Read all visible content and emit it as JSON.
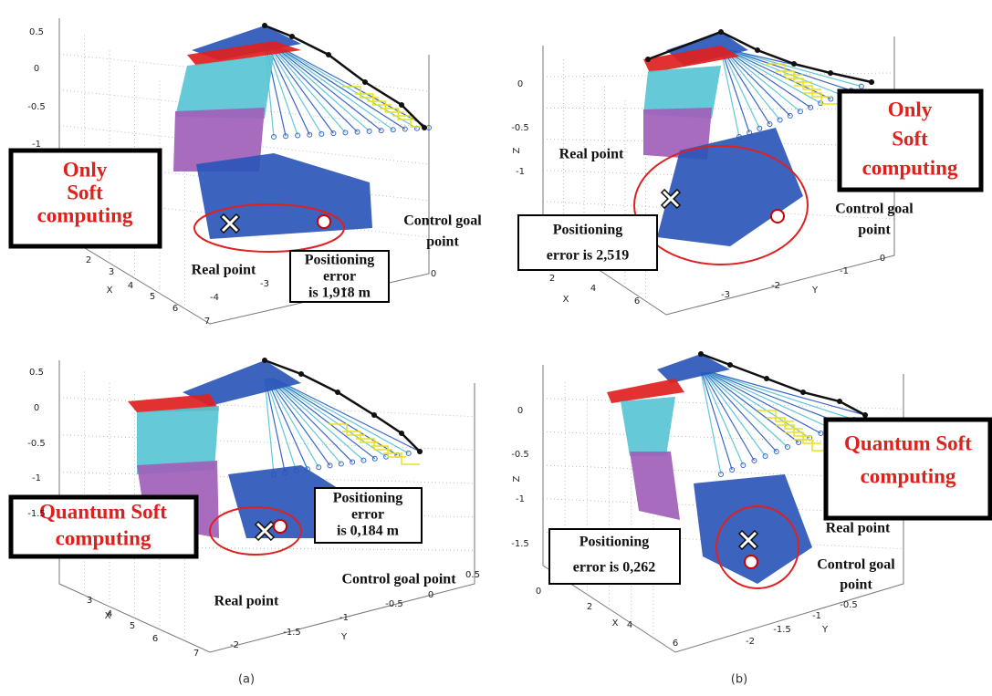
{
  "panels": [
    {
      "method_label": [
        "Only",
        "Soft",
        "computing"
      ],
      "error_label": [
        "Positioning",
        "error",
        "is 1,918 m"
      ],
      "real_point": "Real point",
      "goal_point": [
        "Control goal",
        "point"
      ],
      "z_ticks": [
        "0.5",
        "0",
        "-0.5",
        "-1"
      ],
      "x_ticks": [
        "2",
        "3",
        "4",
        "5",
        "6",
        "7"
      ],
      "x_label": "X",
      "y_ticks": [
        "-4",
        "-3",
        "0"
      ],
      "y_label": "Y"
    },
    {
      "method_label": [
        "Quantum Soft",
        "computing"
      ],
      "error_label": [
        "Positioning",
        "error",
        "is 0,184 m"
      ],
      "real_point": "Real point",
      "goal_point": [
        "Control goal point"
      ],
      "z_ticks": [
        "0.5",
        "0",
        "-0.5",
        "-1",
        "-1.5"
      ],
      "x_ticks": [
        "3",
        "4",
        "5",
        "6",
        "7"
      ],
      "x_label": "X",
      "y_ticks": [
        "-2",
        "-1.5",
        "-1",
        "-0.5",
        "0",
        "0.5"
      ],
      "y_label": "Y"
    },
    {
      "method_label": [
        "Only",
        "Soft",
        "computing"
      ],
      "error_label": [
        "Positioning",
        "error is 2,519"
      ],
      "real_point": "Real point",
      "goal_point": [
        "Control goal",
        "point"
      ],
      "z_label": "Z",
      "z_ticks": [
        "0",
        "-0.5",
        "-1"
      ],
      "x_ticks": [
        "2",
        "4",
        "6"
      ],
      "x_label": "X",
      "y_ticks": [
        "-3",
        "-2",
        "-1",
        "0"
      ],
      "y_label": "Y"
    },
    {
      "method_label": [
        "Quantum Soft",
        "computing"
      ],
      "error_label": [
        "Positioning",
        "error is 0,262"
      ],
      "real_point": "Real point",
      "goal_point": [
        "Control goal",
        "point"
      ],
      "z_label": "Z",
      "z_ticks": [
        "0",
        "-0.5",
        "-1",
        "-1.5"
      ],
      "x_ticks": [
        "0",
        "2",
        "4",
        "6"
      ],
      "x_label": "X",
      "y_ticks": [
        "-0.5",
        "-1",
        "-1.5",
        "-2"
      ],
      "y_label": "Y"
    }
  ],
  "captions": [
    "(a)",
    "(b)"
  ]
}
